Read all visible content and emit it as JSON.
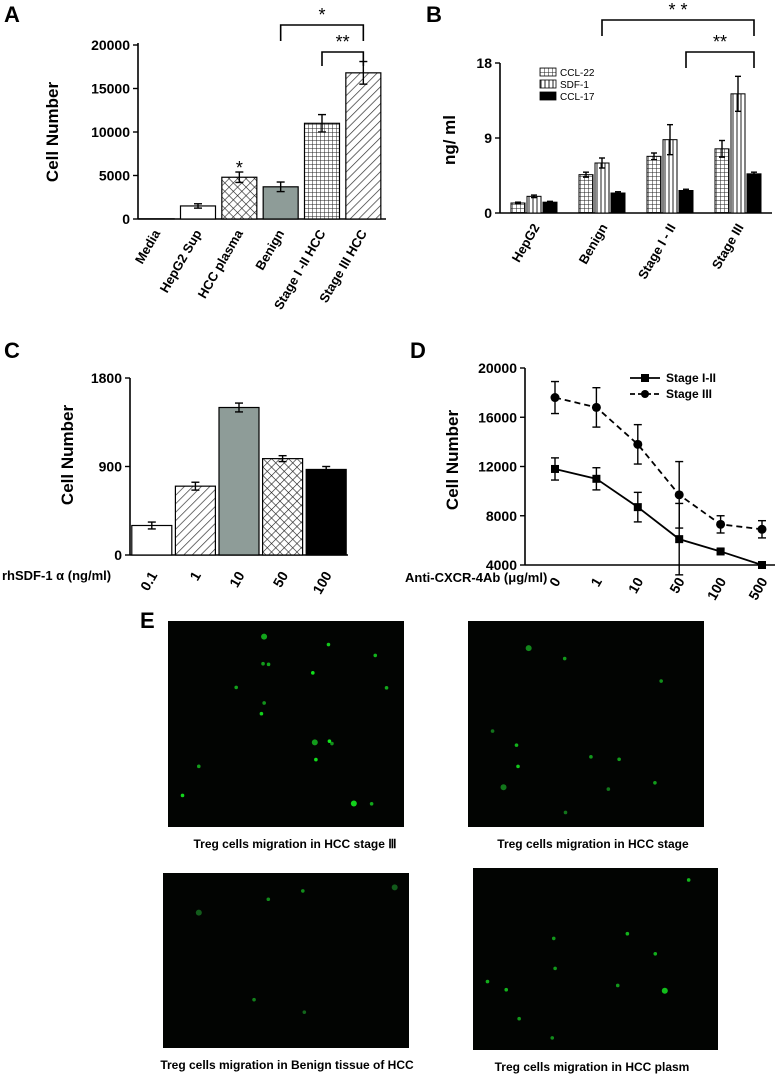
{
  "chart_data": [
    {
      "panel": "A",
      "type": "bar",
      "ylabel": "Cell Number",
      "ylim": [
        0,
        20000
      ],
      "yticks": [
        "0",
        "5000",
        "10000",
        "15000",
        "20000"
      ],
      "categories": [
        "Media",
        "HepG2 Sup",
        "HCC plasma",
        "Benign",
        "Stage I -II HCC",
        "Stage III HCC"
      ],
      "values": [
        20,
        1500,
        4800,
        3700,
        11000,
        16800
      ],
      "errors": [
        0,
        250,
        600,
        550,
        1000,
        1300
      ],
      "fills": [
        "white",
        "white",
        "crosshatch",
        "gray",
        "grid",
        "diagonal"
      ],
      "point_annotations": [
        {
          "category_index": 2,
          "text": "*"
        }
      ],
      "brackets": [
        {
          "from": 3,
          "to": 5,
          "text": "*"
        },
        {
          "from": 4,
          "to": 5,
          "text": "**"
        }
      ]
    },
    {
      "panel": "B",
      "type": "bar",
      "ylabel": "ng/ ml",
      "ylim": [
        0,
        18
      ],
      "yticks": [
        "0",
        "9",
        "18"
      ],
      "categories": [
        "HepG2",
        "Benign",
        "Stage I - II",
        "Stage  III"
      ],
      "series": [
        {
          "name": "CCL-22",
          "values": [
            1.2,
            4.6,
            6.8,
            7.7
          ],
          "errors": [
            0.1,
            0.3,
            0.4,
            1.0
          ],
          "fill": "grid"
        },
        {
          "name": "SDF-1",
          "values": [
            2.0,
            6.0,
            8.8,
            14.3
          ],
          "errors": [
            0.15,
            0.6,
            1.8,
            2.1
          ],
          "fill": "vertical"
        },
        {
          "name": "CCL-17",
          "values": [
            1.3,
            2.4,
            2.7,
            4.7
          ],
          "errors": [
            0.1,
            0.15,
            0.15,
            0.2
          ],
          "fill": "black"
        }
      ],
      "brackets": [
        {
          "from": 1,
          "to": 3,
          "text": "* *"
        },
        {
          "from": 2,
          "to": 3,
          "text": "**"
        }
      ]
    },
    {
      "panel": "C",
      "type": "bar",
      "ylabel": "Cell Number",
      "xlabel": "rhSDF-1 α (ng/ml)",
      "ylim": [
        0,
        1800
      ],
      "yticks": [
        "0",
        "900",
        "1800"
      ],
      "categories": [
        "0.1",
        "1",
        "10",
        "50",
        "100"
      ],
      "values": [
        300,
        700,
        1500,
        980,
        870
      ],
      "errors": [
        35,
        40,
        45,
        30,
        30
      ],
      "fills": [
        "white",
        "diagonal",
        "gray",
        "crosshatch",
        "black"
      ]
    },
    {
      "panel": "D",
      "type": "line",
      "ylabel": "Cell Number",
      "xlabel": "Anti-CXCR-4Ab (μg/ml)",
      "ylim": [
        4000,
        20000
      ],
      "yticks": [
        "4000",
        "8000",
        "12000",
        "16000",
        "20000"
      ],
      "categories": [
        "0",
        "1",
        "10",
        "50",
        "100",
        "500"
      ],
      "series": [
        {
          "name": "Stage I-II",
          "values": [
            11800,
            11000,
            8700,
            6100,
            5100,
            4000
          ],
          "errors": [
            900,
            900,
            1200,
            2900,
            200,
            150
          ],
          "style": "solid",
          "marker": "square"
        },
        {
          "name": "Stage III",
          "values": [
            17600,
            16800,
            13800,
            9700,
            7300,
            6900
          ],
          "errors": [
            1300,
            1600,
            1600,
            2700,
            700,
            700
          ],
          "style": "dashed",
          "marker": "circle"
        }
      ]
    }
  ],
  "panel_labels": {
    "a": "A",
    "b": "B",
    "c": "C",
    "d": "D",
    "e": "E"
  },
  "microscopy": [
    {
      "caption": "Treg cells migration in HCC stage Ⅲ",
      "cells": 18,
      "brightness": 1.0
    },
    {
      "caption": "Treg cells migration in HCC stage",
      "cells": 12,
      "brightness": 0.8
    },
    {
      "caption": "Treg cells migration in Benign tissue of HCC",
      "cells": 6,
      "brightness": 0.3
    },
    {
      "caption": "Treg cells migration in HCC plasm",
      "cells": 11,
      "brightness": 0.85
    }
  ]
}
